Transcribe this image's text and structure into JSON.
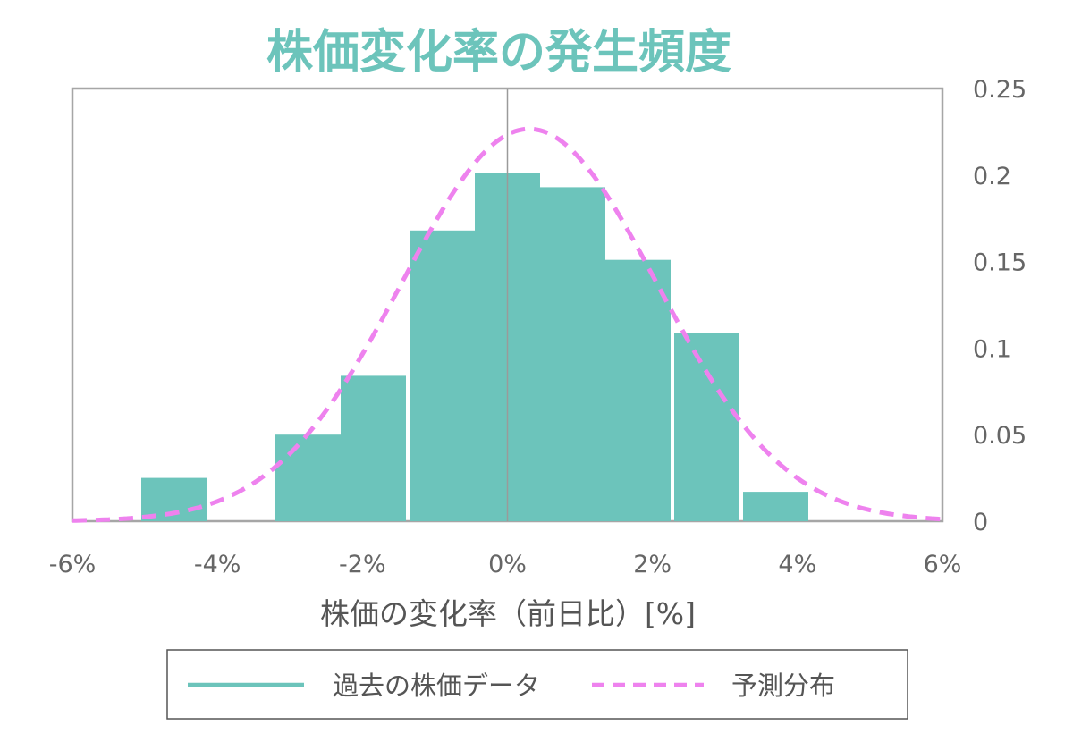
{
  "chart_data": {
    "type": "bar",
    "title": "株価変化率の発生頻度",
    "xlabel": "株価の変化率（前日比）[%]",
    "ylabel": "",
    "x_ticks": [
      "-6%",
      "-4%",
      "-2%",
      "0%",
      "2%",
      "4%",
      "6%"
    ],
    "y_ticks": [
      "0",
      "0.05",
      "0.1",
      "0.15",
      "0.2",
      "0.25"
    ],
    "xlim": [
      -6,
      6
    ],
    "ylim": [
      0,
      0.25
    ],
    "grid": false,
    "legend_position": "bottom",
    "bar_width_pct": 0.9,
    "series": [
      {
        "name": "過去の株価データ",
        "type": "bar",
        "color": "#6cc4bb",
        "x": [
          -4.6,
          -2.75,
          -1.85,
          -0.9,
          0.0,
          0.9,
          1.8,
          2.75,
          3.7
        ],
        "values": [
          0.025,
          0.05,
          0.084,
          0.168,
          0.201,
          0.193,
          0.151,
          0.109,
          0.017
        ]
      },
      {
        "name": "予測分布",
        "type": "line",
        "style": "dashed",
        "color": "#ee82ee",
        "mean": 0.3,
        "stdev": 1.76
      }
    ]
  }
}
